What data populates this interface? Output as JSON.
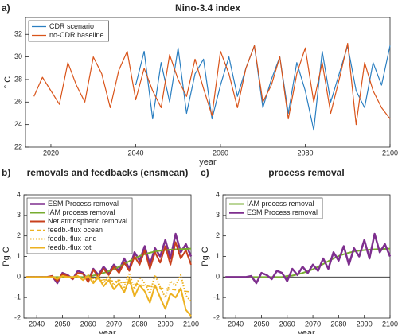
{
  "chart_data": [
    {
      "type": "line",
      "panel_label": "a)",
      "title": "Nino-3.4 index",
      "xlabel": "year",
      "ylabel": "° C",
      "x": [
        2016,
        2018,
        2020,
        2022,
        2024,
        2026,
        2028,
        2030,
        2032,
        2034,
        2036,
        2038,
        2040,
        2042,
        2044,
        2046,
        2048,
        2050,
        2052,
        2054,
        2056,
        2058,
        2060,
        2062,
        2064,
        2066,
        2068,
        2070,
        2072,
        2074,
        2076,
        2078,
        2080,
        2082,
        2084,
        2086,
        2088,
        2090,
        2092,
        2094,
        2096,
        2098,
        2100
      ],
      "xlim": [
        2014,
        2100
      ],
      "xticks": [
        2020,
        2040,
        2060,
        2080,
        2100
      ],
      "ylim": [
        22,
        33.5
      ],
      "yticks": [
        22,
        24,
        26,
        28,
        30,
        32
      ],
      "reference_line": 27.6,
      "series": [
        {
          "name": "CDR scenario",
          "color": "#2b7fc1",
          "values": [
            null,
            null,
            null,
            null,
            null,
            null,
            null,
            null,
            null,
            null,
            null,
            null,
            27.5,
            30.5,
            24.5,
            29.5,
            26.0,
            30.8,
            25.0,
            28.5,
            29.8,
            24.5,
            27.5,
            30.0,
            26.5,
            29.0,
            31.0,
            25.5,
            28.0,
            30.0,
            25.0,
            29.5,
            27.0,
            23.5,
            30.5,
            26.0,
            28.5,
            31.0,
            27.0,
            25.5,
            29.5,
            27.5,
            31.0
          ]
        },
        {
          "name": "no-CDR baseline",
          "color": "#d9541a",
          "values": [
            26.5,
            28.2,
            27.0,
            25.8,
            29.5,
            27.5,
            26.0,
            30.0,
            28.5,
            25.5,
            28.8,
            30.5,
            26.2,
            29.0,
            27.0,
            25.5,
            30.2,
            28.0,
            26.5,
            29.8,
            27.2,
            24.8,
            30.5,
            28.5,
            25.5,
            29.0,
            31.0,
            26.0,
            27.5,
            30.0,
            24.5,
            28.5,
            30.8,
            26.0,
            29.5,
            25.0,
            28.0,
            31.2,
            24.0,
            29.5,
            27.0,
            25.5,
            24.5
          ]
        }
      ]
    },
    {
      "type": "line",
      "panel_label": "b)",
      "title": "removals and feedbacks (ensmean)",
      "xlabel": "year",
      "ylabel": "Pg C",
      "x": [
        2036,
        2038,
        2040,
        2042,
        2044,
        2046,
        2048,
        2050,
        2052,
        2054,
        2056,
        2058,
        2060,
        2062,
        2064,
        2066,
        2068,
        2070,
        2072,
        2074,
        2076,
        2078,
        2080,
        2082,
        2084,
        2086,
        2088,
        2090,
        2092,
        2094,
        2096,
        2098,
        2100
      ],
      "xlim": [
        2035,
        2100
      ],
      "xticks": [
        2040,
        2050,
        2060,
        2070,
        2080,
        2090,
        2100
      ],
      "ylim": [
        -2,
        4
      ],
      "yticks": [
        -2,
        -1,
        0,
        1,
        2,
        3,
        4
      ],
      "reference_line": 0,
      "series": [
        {
          "name": "ESM Process removal",
          "color": "#7e2f8e",
          "width": 2.5,
          "values": [
            0,
            0,
            0,
            0,
            0,
            0.05,
            -0.3,
            0.2,
            0.1,
            -0.1,
            0.3,
            0.2,
            -0.2,
            0.4,
            0.1,
            0.5,
            0.2,
            0.6,
            0.3,
            0.9,
            0.4,
            1.2,
            0.8,
            1.5,
            0.6,
            1.4,
            1.0,
            1.8,
            0.9,
            2.1,
            1.2,
            1.6,
            1.0
          ]
        },
        {
          "name": "IAM process removal",
          "color": "#77ac30",
          "width": 2,
          "values": [
            0,
            0,
            0,
            0,
            0,
            0,
            0,
            0,
            0,
            0,
            0,
            0,
            0.05,
            0.07,
            0.13,
            0.2,
            0.28,
            0.38,
            0.5,
            0.63,
            0.77,
            0.9,
            1.02,
            1.11,
            1.18,
            1.24,
            1.28,
            1.31,
            1.33,
            1.35,
            1.36,
            1.37,
            1.38
          ]
        },
        {
          "name": "Net atmospheric removal",
          "color": "#c8401d",
          "width": 2,
          "values": [
            0,
            0,
            0,
            0,
            0,
            0.05,
            -0.2,
            0.15,
            0.05,
            -0.1,
            0.2,
            0.15,
            -0.25,
            0.35,
            0,
            0.4,
            0.1,
            0.5,
            0.2,
            0.7,
            0.3,
            1.0,
            0.6,
            1.3,
            0.4,
            1.2,
            0.7,
            1.5,
            0.6,
            1.7,
            0.9,
            1.3,
            0.6
          ]
        },
        {
          "name": "feedb.-flux ocean",
          "color": "#edb120",
          "width": 1.5,
          "style": "dashed",
          "values": [
            0,
            0,
            0,
            0,
            0,
            0,
            0,
            0,
            0,
            0,
            -0.02,
            -0.03,
            -0.05,
            -0.07,
            -0.1,
            -0.13,
            -0.16,
            -0.2,
            -0.23,
            -0.27,
            -0.3,
            -0.34,
            -0.38,
            -0.42,
            -0.46,
            -0.5,
            -0.54,
            -0.57,
            -0.6,
            -0.63,
            -0.66,
            -0.7,
            -0.72
          ]
        },
        {
          "name": "feedb.-flux land",
          "color": "#edb120",
          "width": 2,
          "style": "dotted",
          "values": [
            0,
            0,
            0,
            0,
            0,
            0,
            -0.05,
            0.05,
            0,
            0,
            0.05,
            -0.1,
            0.1,
            -0.2,
            0.1,
            -0.3,
            0,
            -0.4,
            -0.1,
            -0.5,
            0.2,
            -0.6,
            0,
            -0.3,
            -0.8,
            0.1,
            -0.5,
            -1.0,
            -0.2,
            -0.4,
            0.1,
            -0.9,
            -1.2
          ]
        },
        {
          "name": "feedb.-flux tot",
          "color": "#edb120",
          "width": 2,
          "values": [
            0,
            0,
            0,
            0,
            0,
            0,
            -0.1,
            0.05,
            0,
            0,
            0.05,
            -0.15,
            0.05,
            -0.3,
            0,
            -0.45,
            -0.15,
            -0.6,
            -0.3,
            -0.75,
            -0.1,
            -0.95,
            -0.4,
            -0.7,
            -1.25,
            -0.4,
            -1.0,
            -1.55,
            -0.8,
            -1.0,
            -0.55,
            -1.6,
            -1.9
          ]
        }
      ]
    },
    {
      "type": "line",
      "panel_label": "c)",
      "title": "process removal",
      "xlabel": "year",
      "ylabel": "Pg C",
      "x": [
        2036,
        2038,
        2040,
        2042,
        2044,
        2046,
        2048,
        2050,
        2052,
        2054,
        2056,
        2058,
        2060,
        2062,
        2064,
        2066,
        2068,
        2070,
        2072,
        2074,
        2076,
        2078,
        2080,
        2082,
        2084,
        2086,
        2088,
        2090,
        2092,
        2094,
        2096,
        2098,
        2100
      ],
      "xlim": [
        2035,
        2100
      ],
      "xticks": [
        2040,
        2050,
        2060,
        2070,
        2080,
        2090,
        2100
      ],
      "ylim": [
        -2,
        4
      ],
      "yticks": [
        -2,
        -1,
        0,
        1,
        2,
        3,
        4
      ],
      "reference_line": 0,
      "series": [
        {
          "name": "IAM process removal",
          "color": "#77ac30",
          "width": 2,
          "values": [
            0,
            0,
            0,
            0,
            0,
            0,
            0,
            0,
            0,
            0,
            0,
            0,
            0.05,
            0.07,
            0.13,
            0.2,
            0.28,
            0.38,
            0.5,
            0.63,
            0.77,
            0.9,
            1.02,
            1.11,
            1.18,
            1.24,
            1.28,
            1.31,
            1.33,
            1.35,
            1.36,
            1.37,
            1.38
          ]
        },
        {
          "name": "ESM Process removal",
          "color": "#7e2f8e",
          "width": 2.5,
          "values": [
            0,
            0,
            0,
            0,
            0,
            0.05,
            -0.3,
            0.2,
            0.1,
            -0.1,
            0.3,
            0.2,
            -0.2,
            0.4,
            0.1,
            0.5,
            0.2,
            0.6,
            0.3,
            0.9,
            0.4,
            1.2,
            0.8,
            1.5,
            0.6,
            1.4,
            1.0,
            1.8,
            0.9,
            2.1,
            1.2,
            1.6,
            1.0
          ]
        }
      ]
    }
  ]
}
